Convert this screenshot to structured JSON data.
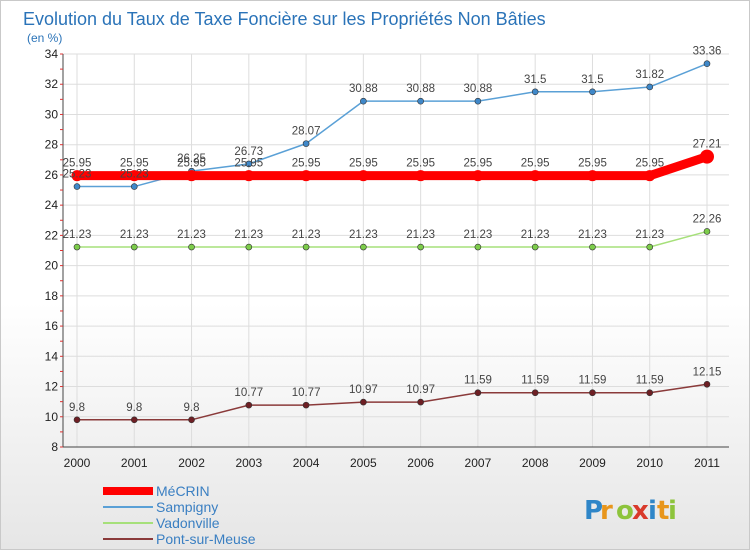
{
  "chart_data": {
    "type": "line",
    "title": "Evolution du Taux de Taxe Foncière sur les Propriétés Non Bâties",
    "subtitle": "(en %)",
    "categories": [
      "2000",
      "2001",
      "2002",
      "2003",
      "2004",
      "2005",
      "2006",
      "2007",
      "2008",
      "2009",
      "2010",
      "2011"
    ],
    "ylim": [
      8,
      34
    ],
    "yticks": [
      8,
      10,
      12,
      14,
      16,
      18,
      20,
      22,
      24,
      26,
      28,
      30,
      32,
      34
    ],
    "ytick_labels": [
      "8",
      "10",
      "12",
      "14",
      "16",
      "18",
      "20",
      "22",
      "24",
      "26",
      "28",
      "30",
      "32",
      "34"
    ],
    "grid": true,
    "series": [
      {
        "name": "Sampigny",
        "color": "#5aa0d6",
        "point_color": "#3f88c9",
        "values": [
          25.23,
          25.23,
          26.25,
          26.73,
          28.07,
          30.88,
          30.88,
          30.88,
          31.5,
          31.5,
          31.82,
          33.36
        ],
        "labels": [
          "25.23",
          "25.23",
          "26.25",
          "26.73",
          "28.07",
          "30.88",
          "30.88",
          "30.88",
          "31.5",
          "31.5",
          "31.82",
          "33.36"
        ]
      },
      {
        "name": "MéCRIN",
        "color": "#ff0000",
        "point_color": "#ff0000",
        "values": [
          25.95,
          25.95,
          25.95,
          25.95,
          25.95,
          25.95,
          25.95,
          25.95,
          25.95,
          25.95,
          25.95,
          27.21
        ],
        "labels": [
          "25.95",
          "25.95",
          "25.95",
          "25.95",
          "25.95",
          "25.95",
          "25.95",
          "25.95",
          "25.95",
          "25.95",
          "25.95",
          "27.21"
        ]
      },
      {
        "name": "Vadonville",
        "color": "#a6e07a",
        "point_color": "#7ccc4a",
        "values": [
          21.23,
          21.23,
          21.23,
          21.23,
          21.23,
          21.23,
          21.23,
          21.23,
          21.23,
          21.23,
          21.23,
          22.26
        ],
        "labels": [
          "21.23",
          "21.23",
          "21.23",
          "21.23",
          "21.23",
          "21.23",
          "21.23",
          "21.23",
          "21.23",
          "21.23",
          "21.23",
          "22.26"
        ]
      },
      {
        "name": "Pont-sur-Meuse",
        "color": "#8a3a3a",
        "point_color": "#6e1f24",
        "values": [
          9.8,
          9.8,
          9.8,
          10.77,
          10.77,
          10.97,
          10.97,
          11.59,
          11.59,
          11.59,
          11.59,
          12.15
        ],
        "labels": [
          "9.8",
          "9.8",
          "9.8",
          "10.77",
          "10.77",
          "10.97",
          "10.97",
          "11.59",
          "11.59",
          "11.59",
          "11.59",
          "12.15"
        ]
      }
    ],
    "legend": {
      "position": "bottom-left",
      "order": [
        "MéCRIN",
        "Sampigny",
        "Vadonville",
        "Pont-sur-Meuse"
      ]
    }
  },
  "brand": {
    "letters": [
      "P",
      "r",
      "o",
      "x",
      "i",
      "t",
      "i"
    ],
    "colors": [
      "#2f86c8",
      "#e8961c",
      "#8dc43c",
      "#d93a2b",
      "#2f86c8",
      "#e8961c",
      "#8dc43c"
    ]
  }
}
